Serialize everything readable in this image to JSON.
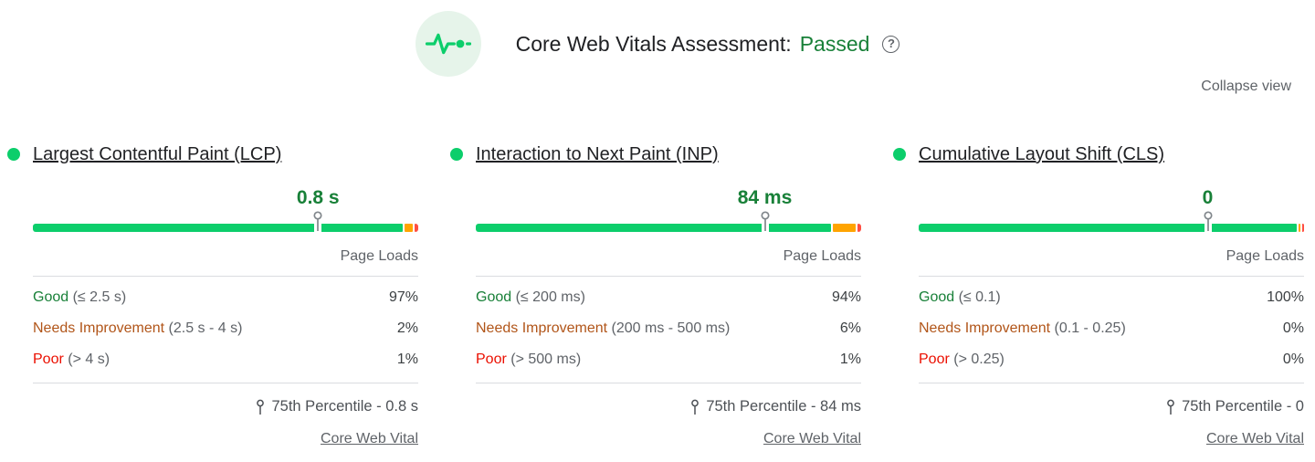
{
  "header": {
    "title": "Core Web Vitals Assessment:",
    "status": "Passed",
    "help_glyph": "?",
    "collapse_label": "Collapse view"
  },
  "colors": {
    "good_bar": "#0cce6b",
    "needs_improvement_bar": "#ffa400",
    "poor_bar": "#ff4e42",
    "good_text": "#188038",
    "needs_improvement_text": "#b15519",
    "poor_text": "#eb0f00",
    "value_text": "#188038",
    "passed_text": "#188038",
    "secondary_text": "#5f6368",
    "icon_circle_bg": "#e6f4ea"
  },
  "metrics": [
    {
      "title": "Largest Contentful Paint (LCP)",
      "value": "0.8 s",
      "marker_position_pct": 74,
      "column_header": "Page Loads",
      "rows": [
        {
          "label": "Good",
          "range": "(≤ 2.5 s)",
          "value": "97%"
        },
        {
          "label": "Needs Improvement",
          "range": "(2.5 s - 4 s)",
          "value": "2%"
        },
        {
          "label": "Poor",
          "range": "(> 4 s)",
          "value": "1%"
        }
      ],
      "distribution": {
        "good": 97,
        "needs_improvement": 2,
        "poor": 1
      },
      "percentile_label": "75th Percentile - 0.8 s",
      "link_label": "Core Web Vital"
    },
    {
      "title": "Interaction to Next Paint (INP)",
      "value": "84 ms",
      "marker_position_pct": 75,
      "column_header": "Page Loads",
      "rows": [
        {
          "label": "Good",
          "range": "(≤ 200 ms)",
          "value": "94%"
        },
        {
          "label": "Needs Improvement",
          "range": "(200 ms - 500 ms)",
          "value": "6%"
        },
        {
          "label": "Poor",
          "range": "(> 500 ms)",
          "value": "1%"
        }
      ],
      "distribution": {
        "good": 94,
        "needs_improvement": 6,
        "poor": 1
      },
      "percentile_label": "75th Percentile - 84 ms",
      "link_label": "Core Web Vital"
    },
    {
      "title": "Cumulative Layout Shift (CLS)",
      "value": "0",
      "marker_position_pct": 75,
      "column_header": "Page Loads",
      "rows": [
        {
          "label": "Good",
          "range": "(≤ 0.1)",
          "value": "100%"
        },
        {
          "label": "Needs Improvement",
          "range": "(0.1 - 0.25)",
          "value": "0%"
        },
        {
          "label": "Poor",
          "range": "(> 0.25)",
          "value": "0%"
        }
      ],
      "distribution": {
        "good": 100,
        "needs_improvement": 0,
        "poor": 0
      },
      "percentile_label": "75th Percentile - 0",
      "link_label": "Core Web Vital"
    }
  ]
}
